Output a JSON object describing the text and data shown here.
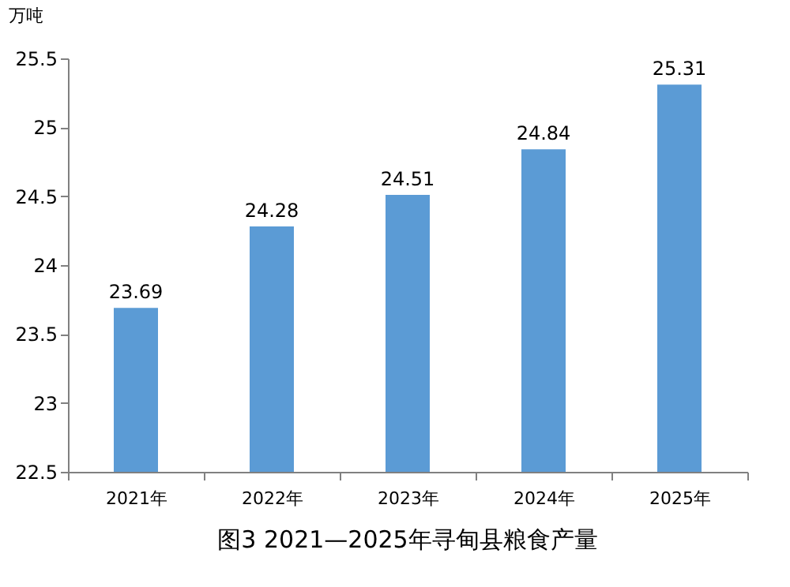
{
  "chart_data": {
    "type": "bar",
    "title": "图3 2021—2025年寻甸县粮食产量",
    "ylabel": "万吨",
    "categories": [
      "2021年",
      "2022年",
      "2023年",
      "2024年",
      "2025年"
    ],
    "values": [
      23.69,
      24.28,
      24.51,
      24.84,
      25.31
    ],
    "color": "#5b9bd5",
    "ylim": [
      22.5,
      25.5
    ],
    "yticks": [
      22.5,
      23,
      23.5,
      24,
      24.5,
      25,
      25.5
    ],
    "grid": false,
    "data_labels": true
  }
}
